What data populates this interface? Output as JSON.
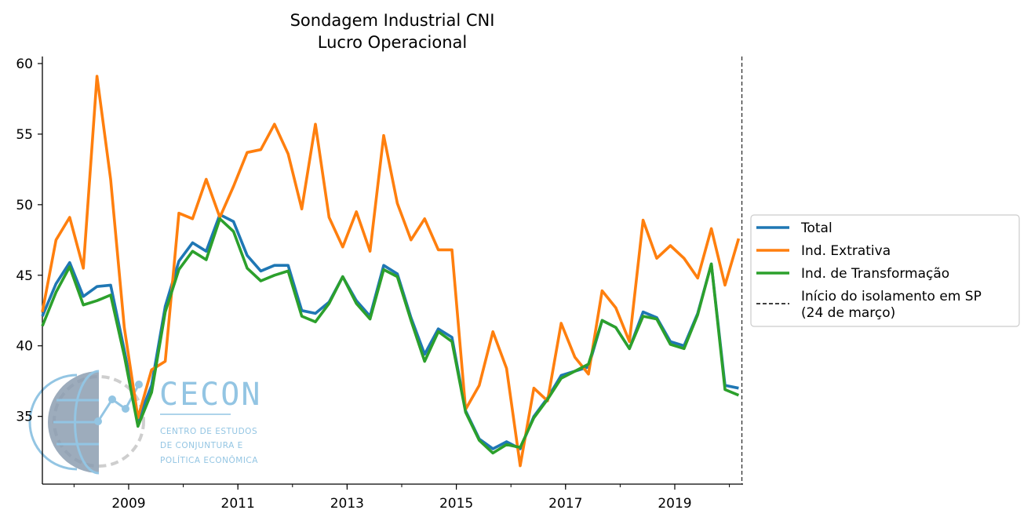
{
  "chart_data": {
    "type": "line",
    "title": "Sondagem Industrial CNI",
    "subtitle": "Lucro Operacional",
    "xlabel": "",
    "ylabel": "",
    "xlim": [
      2007.42,
      2020.25
    ],
    "ylim": [
      30.2,
      60.5
    ],
    "x_ticks": [
      2009,
      2011,
      2013,
      2015,
      2017,
      2019
    ],
    "y_ticks": [
      35,
      40,
      45,
      50,
      55,
      60
    ],
    "grid": false,
    "legend_position": "right, outside plot",
    "x": [
      2007.42,
      2007.67,
      2007.92,
      2008.17,
      2008.42,
      2008.67,
      2008.92,
      2009.17,
      2009.42,
      2009.67,
      2009.92,
      2010.17,
      2010.42,
      2010.67,
      2010.92,
      2011.17,
      2011.42,
      2011.67,
      2011.92,
      2012.17,
      2012.42,
      2012.67,
      2012.92,
      2013.17,
      2013.42,
      2013.67,
      2013.92,
      2014.17,
      2014.42,
      2014.67,
      2014.92,
      2015.17,
      2015.42,
      2015.67,
      2015.92,
      2016.17,
      2016.42,
      2016.67,
      2016.92,
      2017.17,
      2017.42,
      2017.67,
      2017.92,
      2018.17,
      2018.42,
      2018.67,
      2018.92,
      2019.17,
      2019.42,
      2019.67,
      2019.92,
      2020.17
    ],
    "series": [
      {
        "name": "Total",
        "color": "#1f77b4",
        "width": 3.6,
        "values": [
          42.1,
          44.4,
          45.9,
          43.5,
          44.2,
          44.3,
          39.7,
          34.7,
          37.2,
          42.8,
          46.0,
          47.3,
          46.7,
          49.3,
          48.8,
          46.4,
          45.3,
          45.7,
          45.7,
          42.5,
          42.3,
          43.1,
          44.9,
          43.2,
          42.1,
          45.7,
          45.1,
          42.0,
          39.4,
          41.2,
          40.6,
          35.4,
          33.4,
          32.7,
          33.2,
          32.7,
          35.0,
          36.3,
          37.9,
          38.2,
          38.5,
          41.8,
          41.3,
          39.8,
          42.4,
          42.0,
          40.3,
          40.0,
          42.3,
          45.8,
          37.2,
          37.0
        ]
      },
      {
        "name": "Ind. Extrativa",
        "color": "#ff7f0e",
        "width": 3.6,
        "values": [
          42.4,
          47.5,
          49.1,
          45.5,
          59.1,
          51.8,
          41.3,
          34.9,
          38.3,
          38.9,
          49.4,
          49.0,
          51.8,
          49.1,
          51.3,
          53.7,
          53.9,
          55.7,
          53.6,
          49.7,
          55.7,
          49.1,
          47.0,
          49.5,
          46.7,
          54.9,
          50.1,
          47.5,
          49.0,
          46.8,
          46.8,
          35.5,
          37.2,
          41.0,
          38.4,
          31.5,
          37.0,
          36.1,
          41.6,
          39.2,
          38.0,
          43.9,
          42.7,
          40.3,
          48.9,
          46.2,
          47.1,
          46.2,
          44.8,
          48.3,
          44.3,
          47.6
        ]
      },
      {
        "name": "Ind. de Transformação",
        "color": "#2ca02c",
        "width": 3.6,
        "values": [
          41.4,
          43.8,
          45.6,
          42.9,
          43.2,
          43.6,
          39.3,
          34.3,
          36.7,
          42.4,
          45.4,
          46.7,
          46.1,
          49.0,
          48.1,
          45.5,
          44.6,
          45.0,
          45.3,
          42.1,
          41.7,
          43.0,
          44.9,
          43.0,
          41.9,
          45.4,
          44.9,
          41.8,
          38.9,
          41.0,
          40.3,
          35.3,
          33.3,
          32.4,
          33.0,
          32.8,
          34.9,
          36.2,
          37.7,
          38.2,
          38.7,
          41.8,
          41.3,
          39.8,
          42.1,
          41.9,
          40.1,
          39.8,
          42.2,
          45.8,
          36.9,
          36.5
        ]
      }
    ],
    "vline": {
      "x": 2020.23,
      "label": "Início do isolamento em SP (24 de março)",
      "label_lines": [
        "Início do isolamento em SP",
        "(24 de março)"
      ],
      "style": "dashed",
      "color": "#000000"
    }
  },
  "logo": {
    "name": "CECON",
    "subtitle_lines": [
      "CENTRO DE ESTUDOS",
      "DE CONJUNTURA E",
      "POLÍTICA ECONÔMICA"
    ]
  }
}
